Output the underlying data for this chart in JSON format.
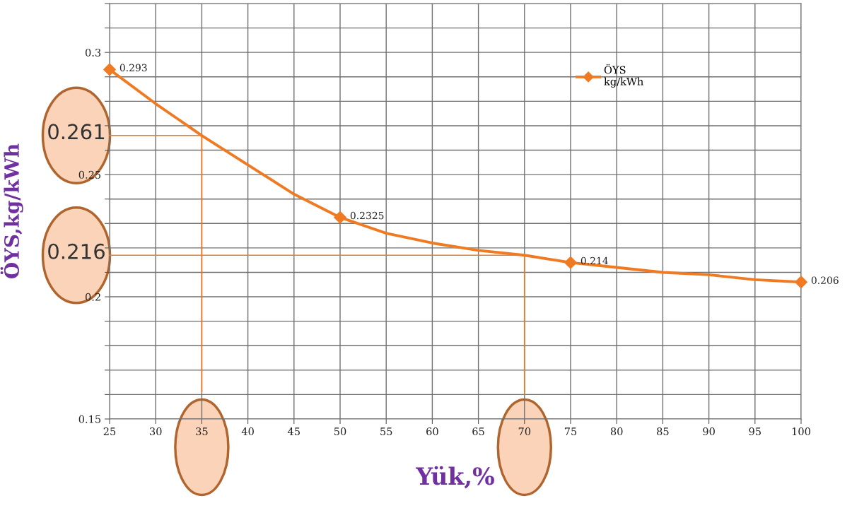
{
  "chart_data": {
    "type": "line",
    "xlabel": "Yük,%",
    "ylabel": "ÖYS,kg/kWh",
    "x": [
      25,
      50,
      75,
      100
    ],
    "series": [
      {
        "color": "#f07a22",
        "x": [
          25,
          30,
          35,
          40,
          45,
          50,
          55,
          60,
          65,
          70,
          75,
          80,
          85,
          90,
          95,
          100
        ],
        "values": [
          0.293,
          0.279,
          0.266,
          0.254,
          0.242,
          0.2325,
          0.226,
          0.222,
          0.219,
          0.217,
          0.214,
          0.212,
          0.21,
          0.209,
          0.207,
          0.206
        ]
      },
      {
        "type": "scatter",
        "marker": "diamond",
        "name": "ÖYS\nkg/kWh",
        "color": "#f07a22",
        "values": [
          0.293,
          0.2325,
          0.214,
          0.206
        ],
        "value_labels": [
          "0.293",
          "0.2325",
          "0.214",
          "0.206"
        ]
      },
      {
        "color": "#f07a22",
        "x": [
          25,
          35,
          35
        ],
        "values": [
          0.266,
          0.266,
          0.161
        ]
      },
      {
        "color": "#f07a22",
        "x": [
          25,
          70,
          70
        ],
        "values": [
          0.217,
          0.217,
          0.16
        ]
      }
    ],
    "line_style": "solid",
    "grid": true,
    "legend": "top right",
    "xlim": [
      25,
      100
    ],
    "xticks": [
      25,
      30,
      35,
      40,
      45,
      50,
      55,
      60,
      65,
      70,
      75,
      80,
      85,
      90,
      95,
      100
    ],
    "ylim": [
      0.15,
      0.32
    ],
    "yticks": [
      0.15,
      {
        "value": 0.16,
        "label": null
      },
      {
        "value": 0.17,
        "label": null
      },
      {
        "value": 0.18,
        "label": null
      },
      {
        "value": 0.19,
        "label": null
      },
      0.2,
      {
        "value": 0.21,
        "label": null
      },
      {
        "value": 0.22,
        "label": null
      },
      {
        "value": 0.23,
        "label": null
      },
      {
        "value": 0.24,
        "label": null
      },
      0.25,
      {
        "value": 0.26,
        "label": null
      },
      {
        "value": 0.27,
        "label": null
      },
      {
        "value": 0.28,
        "label": null
      },
      {
        "value": 0.29,
        "label": null
      },
      0.3,
      {
        "value": 0.31,
        "label": null
      },
      {
        "value": 0.32,
        "label": null
      }
    ],
    "annotations": [
      "0.261",
      "0.216"
    ]
  }
}
